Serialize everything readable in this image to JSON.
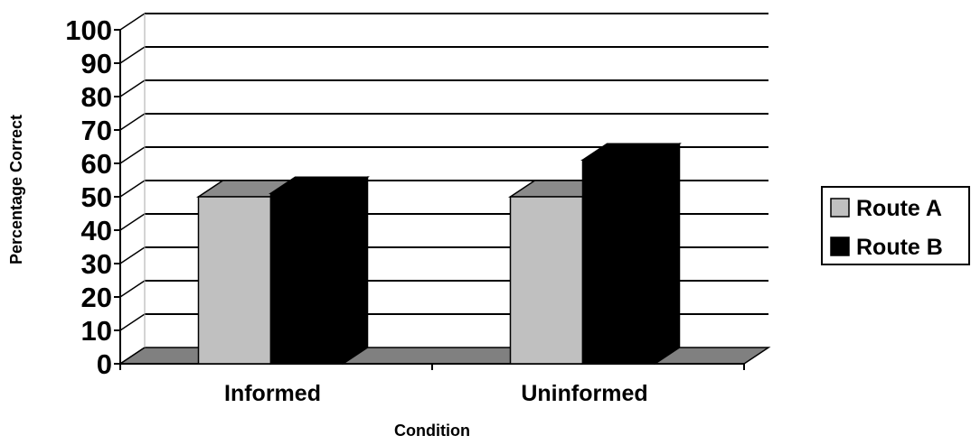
{
  "chart_data": {
    "type": "bar",
    "style": "3d-clustered-column",
    "categories": [
      "Informed",
      "Uninformed"
    ],
    "series": [
      {
        "name": "Route A",
        "values": [
          50,
          50
        ],
        "color": "#c0c0c0"
      },
      {
        "name": "Route B",
        "values": [
          51,
          61
        ],
        "color": "#000000"
      }
    ],
    "xlabel": "Condition",
    "ylabel": "Percentage Correct",
    "ylim": [
      0,
      100
    ],
    "yticks": [
      "0",
      "10",
      "20",
      "30",
      "40",
      "50",
      "60",
      "70",
      "80",
      "90",
      "100"
    ],
    "grid": true,
    "legend_position": "right",
    "floor_color": "#808080"
  }
}
